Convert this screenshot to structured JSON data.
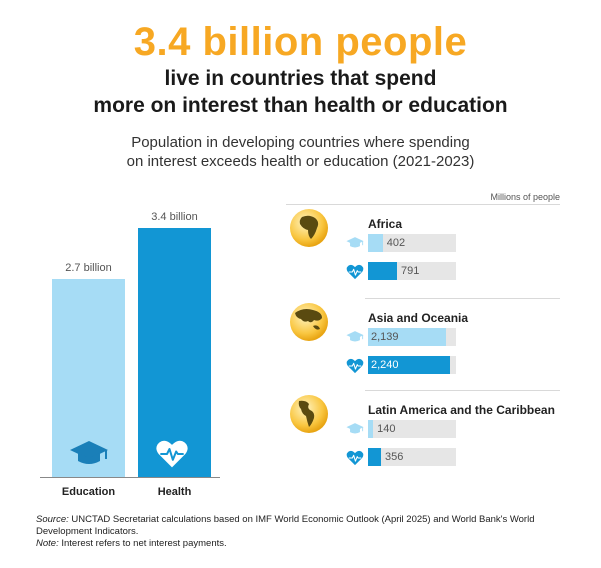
{
  "header": {
    "headline": "3.4 billion people",
    "subhead_line1": "live in countries that spend",
    "subhead_line2": "more on interest than health or education",
    "intro_line1": "Population in developing countries where spending",
    "intro_line2": "on interest exceeds health or education (2021-2023)"
  },
  "colors": {
    "accent": "#f7a823",
    "education": "#a6dcf5",
    "health": "#1296d4",
    "track": "#e6e6e6"
  },
  "chart_data": [
    {
      "type": "bar",
      "categories": [
        "Education",
        "Health"
      ],
      "values": [
        2.7,
        3.4
      ],
      "data_labels": [
        "2.7 billion",
        "3.4 billion"
      ],
      "unit": "billion",
      "icons": [
        "graduation-cap-icon",
        "heart-pulse-icon"
      ]
    },
    {
      "type": "bar",
      "orientation": "horizontal",
      "units_label": "Millions of people",
      "max_value": 2400,
      "categories": [
        "Africa",
        "Asia and Oceania",
        "Latin America and the Caribbean"
      ],
      "series": [
        {
          "key": "education",
          "icon": "graduation-cap-icon",
          "values": [
            402,
            2139,
            140
          ],
          "labels": [
            "402",
            "2,139",
            "140"
          ]
        },
        {
          "key": "health",
          "icon": "heart-pulse-icon",
          "values": [
            791,
            2240,
            356
          ],
          "labels": [
            "791",
            "2,240",
            "356"
          ]
        }
      ],
      "globe_icons": [
        "globe-africa-icon",
        "globe-asia-icon",
        "globe-americas-icon"
      ]
    }
  ],
  "footer": {
    "source_label": "Source:",
    "source_text": " UNCTAD Secretariat calculations based on IMF World Economic Outlook (April 2025) and World Bank's World Development Indicators.",
    "note_label": "Note:",
    "note_text": " Interest refers to net interest payments."
  }
}
